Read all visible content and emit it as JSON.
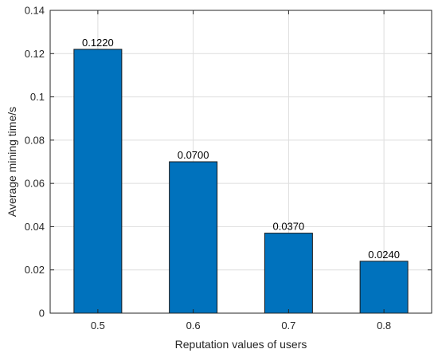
{
  "chart_data": {
    "type": "bar",
    "categories": [
      "0.5",
      "0.6",
      "0.7",
      "0.8"
    ],
    "values": [
      0.122,
      0.07,
      0.037,
      0.024
    ],
    "data_labels": [
      "0.1220",
      "0.0700",
      "0.0370",
      "0.0240"
    ],
    "xlabel": "Reputation values of users",
    "ylabel": "Average mining time/s",
    "ylim": [
      0,
      0.14
    ],
    "yticks": [
      0,
      0.02,
      0.04,
      0.06,
      0.08,
      0.1,
      0.12,
      0.14
    ],
    "ytick_labels": [
      "0",
      "0.02",
      "0.04",
      "0.06",
      "0.08",
      "0.1",
      "0.12",
      "0.14"
    ],
    "grid": true,
    "colors": {
      "bar_fill": "#0072BD",
      "bar_edge": "#1a1a1a",
      "grid": "#dedede",
      "axis": "#262626"
    }
  }
}
